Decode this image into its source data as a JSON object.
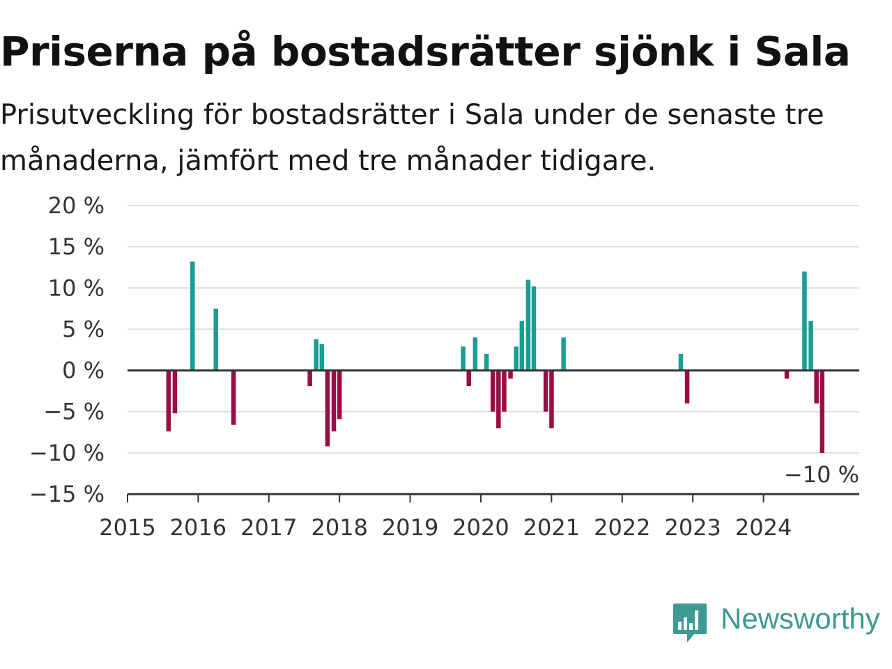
{
  "title": "Priserna på bostadsrätter sjönk i Sala",
  "subtitle": "Prisutveckling för bostadsrätter i Sala under de senaste tre månaderna, jämfört med tre månader tidigare.",
  "brand": {
    "name": "Newsworthy",
    "color": "#3e9a91",
    "icon": "newsworthy-logo-icon"
  },
  "colors": {
    "positive": "#1a9e94",
    "negative": "#9b0d42",
    "grid": "#dddddd",
    "zero_line": "#333333"
  },
  "chart_data": {
    "type": "bar",
    "title": "Priserna på bostadsrätter sjönk i Sala",
    "xlabel": "",
    "ylabel": "",
    "ylim": [
      -15,
      20
    ],
    "xlim": [
      2015.0,
      2025.25
    ],
    "yticks": [
      20,
      15,
      10,
      5,
      0,
      -5,
      -10,
      -15
    ],
    "ytick_labels": [
      "20 %",
      "15 %",
      "10 %",
      "5 %",
      "0 %",
      "−5 %",
      "−10 %",
      "−15 %"
    ],
    "xtick_labels": [
      "2015",
      "2016",
      "2017",
      "2018",
      "2019",
      "2020",
      "2021",
      "2022",
      "2023",
      "2024"
    ],
    "grid": true,
    "x": [
      2015.58,
      2015.67,
      2015.92,
      2016.25,
      2016.5,
      2017.58,
      2017.67,
      2017.75,
      2017.83,
      2017.92,
      2018.0,
      2019.75,
      2019.83,
      2019.92,
      2020.08,
      2020.17,
      2020.25,
      2020.33,
      2020.42,
      2020.5,
      2020.58,
      2020.67,
      2020.75,
      2020.92,
      2021.0,
      2021.17,
      2022.83,
      2022.92,
      2024.33,
      2024.58,
      2024.67,
      2024.75,
      2024.83
    ],
    "values": [
      -7.4,
      -5.2,
      13.2,
      7.5,
      -6.6,
      -1.9,
      3.8,
      3.2,
      -9.2,
      -7.4,
      -5.9,
      2.9,
      -1.9,
      4.0,
      2.0,
      -5.0,
      -7.0,
      -5.0,
      -1.0,
      2.9,
      6.0,
      11.0,
      10.2,
      -5.0,
      -7.0,
      4.0,
      2.0,
      -4.0,
      -1.0,
      12.0,
      6.0,
      -4.0,
      -10.0
    ],
    "annotations": [
      {
        "x": 2024.83,
        "y": -10,
        "text": "−10 %"
      }
    ]
  }
}
